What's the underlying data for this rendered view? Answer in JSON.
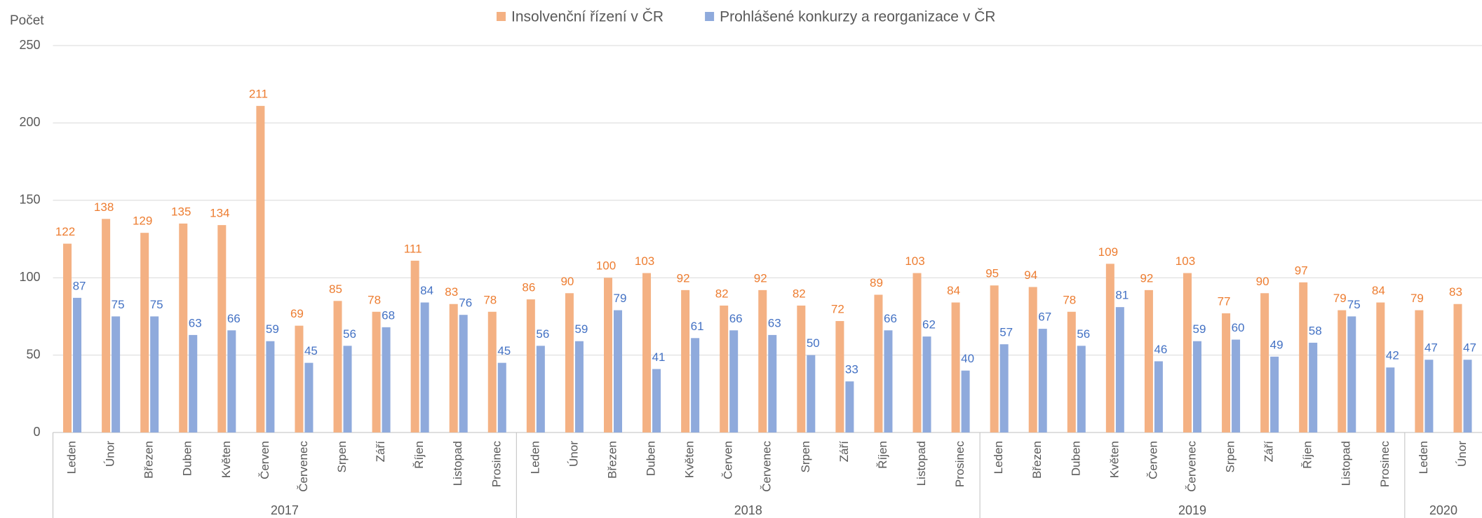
{
  "chart_data": {
    "type": "bar",
    "y_axis_label": "Počet",
    "category_groups": [
      {
        "label": "2017",
        "categories": [
          "Leden",
          "Únor",
          "Březen",
          "Duben",
          "Květen",
          "Červen",
          "Červenec",
          "Srpen",
          "Září",
          "Říjen",
          "Listopad",
          "Prosinec"
        ]
      },
      {
        "label": "2018",
        "categories": [
          "Leden",
          "Únor",
          "Březen",
          "Duben",
          "Květen",
          "Červen",
          "Červenec",
          "Srpen",
          "Září",
          "Říjen",
          "Listopad",
          "Prosinec"
        ]
      },
      {
        "label": "2019",
        "categories": [
          "Leden",
          "Březen",
          "Duben",
          "Květen",
          "Červen",
          "Červenec",
          "Srpen",
          "Září",
          "Říjen",
          "Listopad",
          "Prosinec"
        ]
      },
      {
        "label": "2020",
        "categories": [
          "Leden",
          "Únor"
        ]
      }
    ],
    "series": [
      {
        "name": "Insolvenční řízení v ČR",
        "color": "#f4b183",
        "label_color": "#ed7d31",
        "values": [
          122,
          138,
          129,
          135,
          134,
          211,
          69,
          85,
          78,
          111,
          83,
          78,
          86,
          90,
          100,
          103,
          92,
          82,
          92,
          82,
          72,
          89,
          103,
          84,
          95,
          94,
          78,
          109,
          92,
          103,
          77,
          90,
          97,
          79,
          84,
          79,
          83
        ]
      },
      {
        "name": "Prohlášené konkurzy a reorganizace v ČR",
        "color": "#8faadc",
        "label_color": "#4472c4",
        "values": [
          87,
          75,
          75,
          63,
          66,
          59,
          45,
          56,
          68,
          84,
          76,
          45,
          56,
          59,
          79,
          41,
          61,
          66,
          63,
          50,
          33,
          66,
          62,
          40,
          57,
          67,
          56,
          81,
          46,
          59,
          60,
          49,
          58,
          75,
          42,
          47,
          47
        ]
      }
    ],
    "ylim": [
      0,
      250
    ],
    "yticks": [
      0,
      50,
      100,
      150,
      200,
      250
    ],
    "grid": true,
    "legend": "top"
  }
}
